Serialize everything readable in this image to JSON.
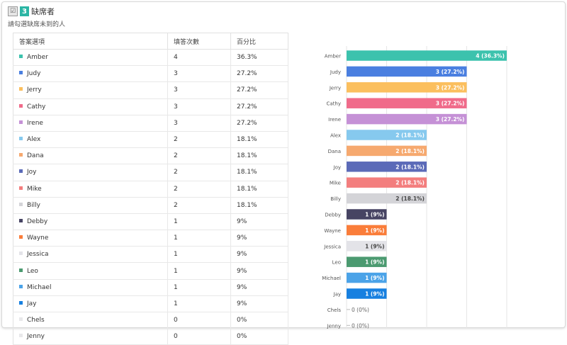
{
  "question": {
    "number": "3",
    "title": "缺席者",
    "description": "請勾選缺席未到的人"
  },
  "table": {
    "headers": [
      "答案選項",
      "填答次數",
      "百分比"
    ]
  },
  "chart_data": {
    "type": "bar",
    "orientation": "horizontal",
    "categories": [
      "Amber",
      "Judy",
      "Jerry",
      "Cathy",
      "Irene",
      "Alex",
      "Dana",
      "Joy",
      "Mike",
      "Billy",
      "Debby",
      "Wayne",
      "Jessica",
      "Leo",
      "Michael",
      "Jay",
      "Chels",
      "Jenny"
    ],
    "values": [
      4,
      3,
      3,
      3,
      3,
      2,
      2,
      2,
      2,
      2,
      1,
      1,
      1,
      1,
      1,
      1,
      0,
      0
    ],
    "percent_labels": [
      "36.3%",
      "27.2%",
      "27.2%",
      "27.2%",
      "27.2%",
      "18.1%",
      "18.1%",
      "18.1%",
      "18.1%",
      "18.1%",
      "9%",
      "9%",
      "9%",
      "9%",
      "9%",
      "9%",
      "0%",
      "0%"
    ],
    "bar_labels": [
      "4 (36.3%)",
      "3 (27.2%)",
      "3 (27.2%)",
      "3 (27.2%)",
      "3 (27.2%)",
      "2 (18.1%)",
      "2 (18.1%)",
      "2 (18.1%)",
      "2 (18.1%)",
      "2 (18.1%)",
      "1 (9%)",
      "1 (9%)",
      "1 (9%)",
      "1 (9%)",
      "1 (9%)",
      "1 (9%)",
      "0 (0%)",
      "0 (0%)"
    ],
    "colors": [
      "#3cc2ad",
      "#4a7fe0",
      "#fbbf5e",
      "#f06b8a",
      "#c591d6",
      "#86c9ee",
      "#f6a96f",
      "#5b6ab8",
      "#f37e7e",
      "#d4d4d8",
      "#474463",
      "#fa7d3a",
      "#e3e3e8",
      "#4b9a70",
      "#4ba3e8",
      "#1780e0",
      "#e8e8ea",
      "#e8e8ea"
    ],
    "label_on_light": [
      false,
      false,
      false,
      false,
      false,
      false,
      false,
      false,
      false,
      true,
      false,
      false,
      true,
      false,
      false,
      false,
      true,
      true
    ],
    "xlim": [
      0,
      4
    ],
    "grid": true
  }
}
